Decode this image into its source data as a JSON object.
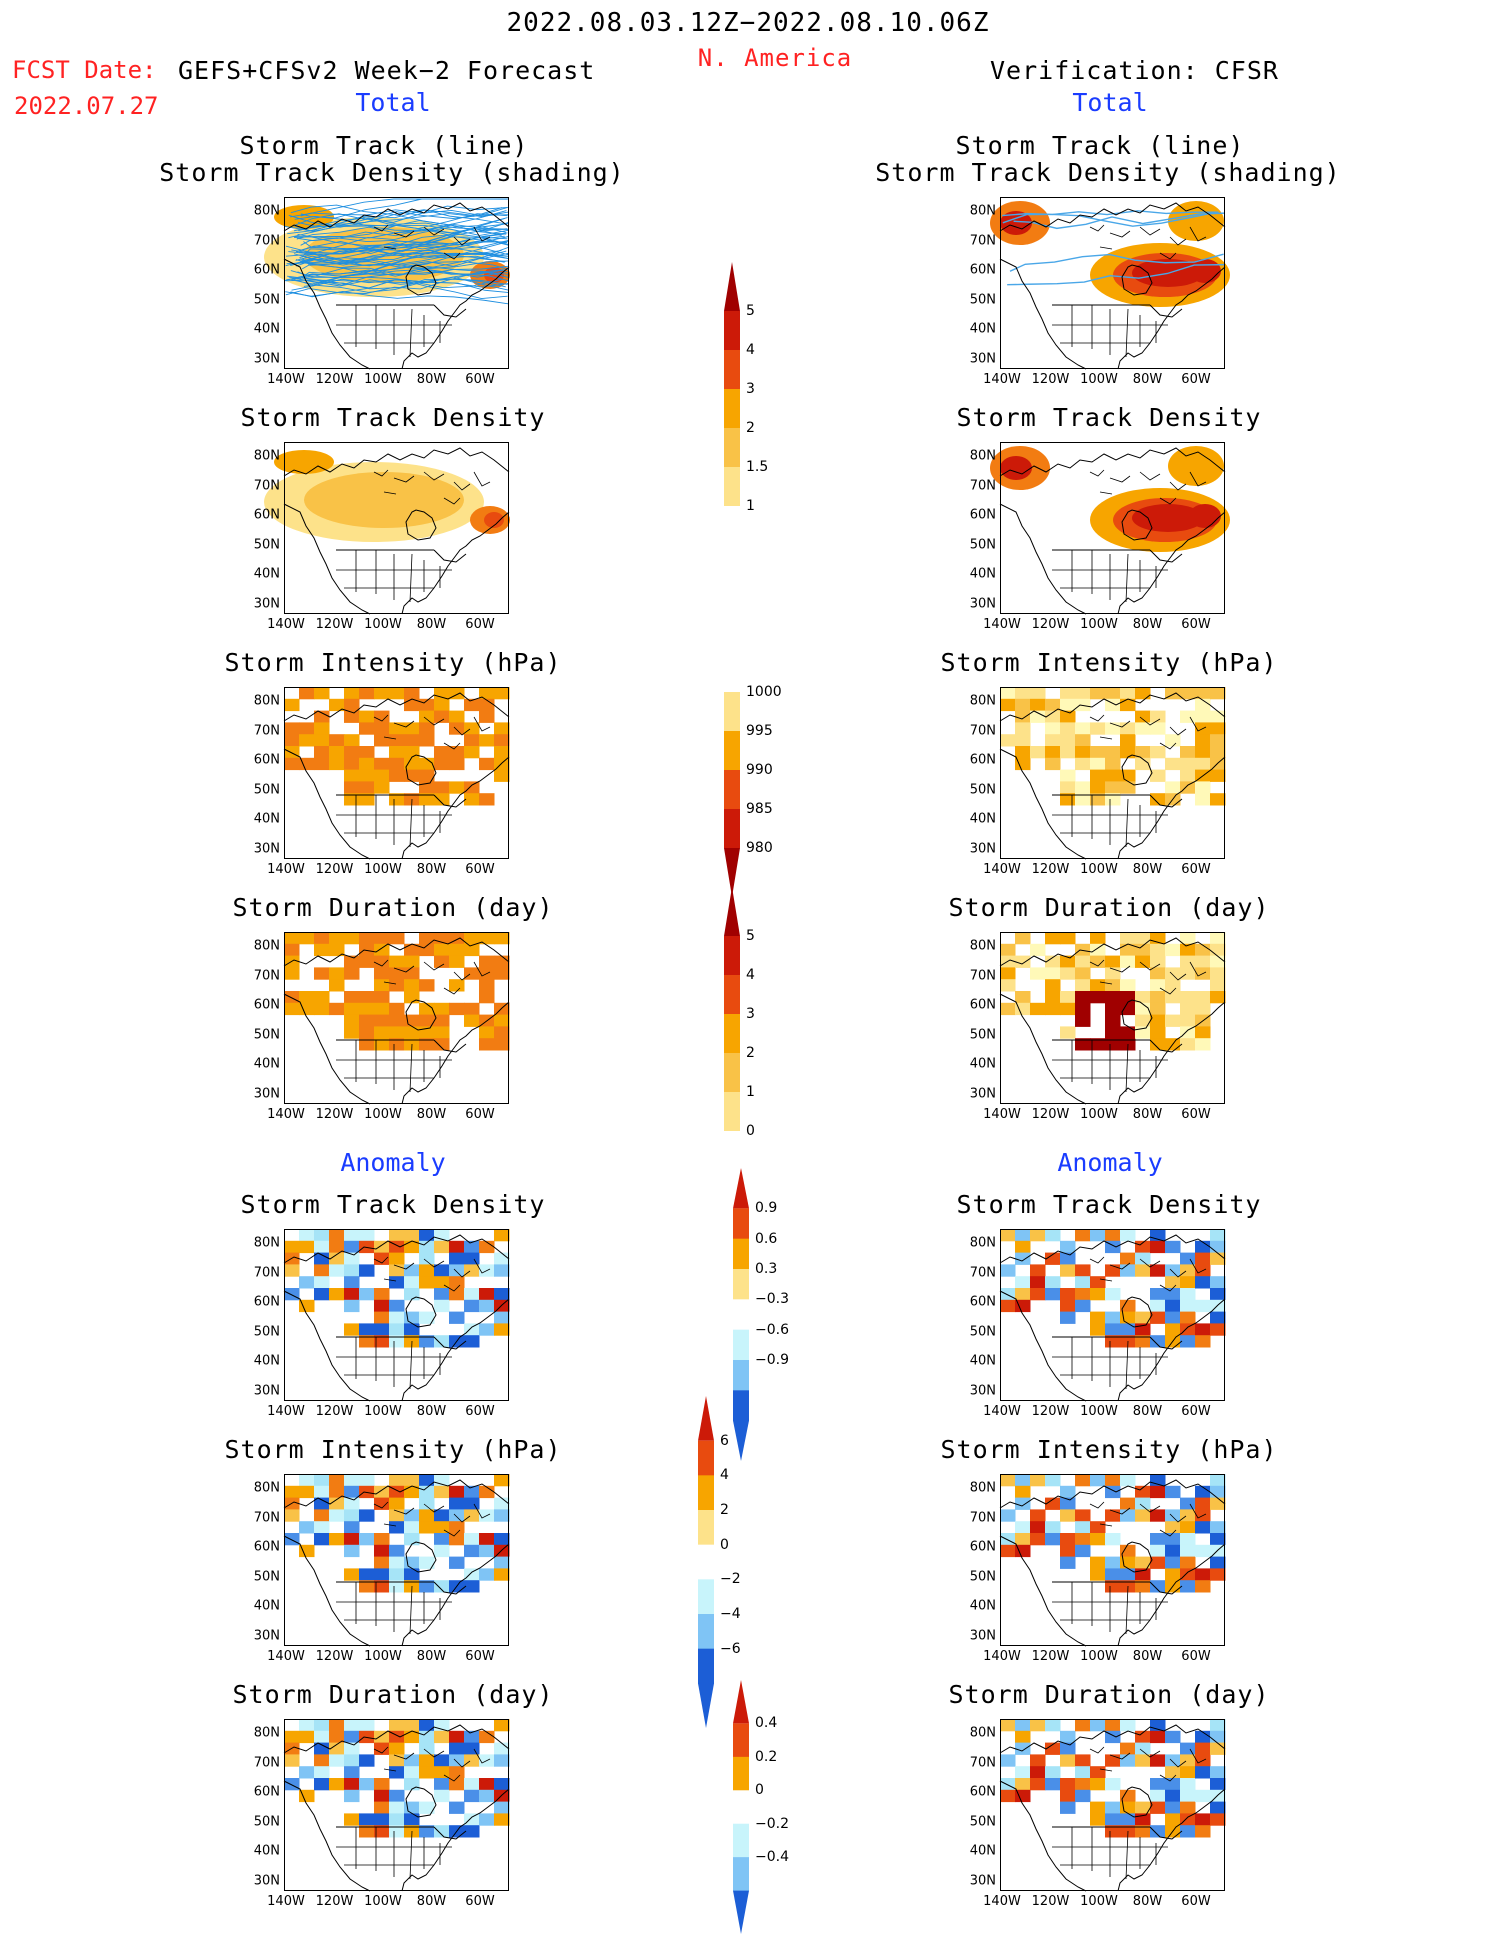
{
  "header": {
    "date_range": "2022.08.03.12Z−2022.08.10.06Z",
    "region": "N. America",
    "fcst_label": "FCST Date:",
    "fcst_model": "GEFS+CFSv2 Week−2 Forecast",
    "fcst_date": "2022.07.27",
    "verification": "Verification: CFSR"
  },
  "sections": {
    "total": "Total",
    "anomaly": "Anomaly"
  },
  "panel_titles": {
    "track_line": "Storm Track (line)",
    "track_shading": "Storm Track Density (shading)",
    "density": "Storm Track Density",
    "intensity": "Storm Intensity (hPa)",
    "duration": "Storm Duration (day)"
  },
  "axes": {
    "lat": [
      "80N",
      "70N",
      "60N",
      "50N",
      "40N",
      "30N"
    ],
    "lon": [
      "140W",
      "120W",
      "100W",
      "80W",
      "60W"
    ]
  },
  "colorbars": {
    "density": [
      "5",
      "4",
      "3",
      "2",
      "1.5",
      "1"
    ],
    "intensity": [
      "1000",
      "995",
      "990",
      "985",
      "980"
    ],
    "duration": [
      "5",
      "4",
      "3",
      "2",
      "1",
      "0"
    ],
    "density_anom": [
      "0.9",
      "0.6",
      "0.3",
      "−0.3",
      "−0.6",
      "−0.9"
    ],
    "intensity_anom": [
      "6",
      "4",
      "2",
      "0",
      "−2",
      "−4",
      "−6"
    ],
    "duration_anom": [
      "0.4",
      "0.2",
      "0",
      "−0.2",
      "−0.4"
    ]
  },
  "colors": {
    "title_red": "#ff2222",
    "section_blue": "#1a3cff",
    "warm": [
      "#fff9b8",
      "#fde28a",
      "#f9c247",
      "#f7a500",
      "#f27c12",
      "#e84b0f",
      "#cc1a08",
      "#a00000"
    ],
    "cool": [
      "#c8f4fb",
      "#a6e4f7",
      "#7fc4f5",
      "#4a8fe8",
      "#1c5ed6"
    ]
  }
}
